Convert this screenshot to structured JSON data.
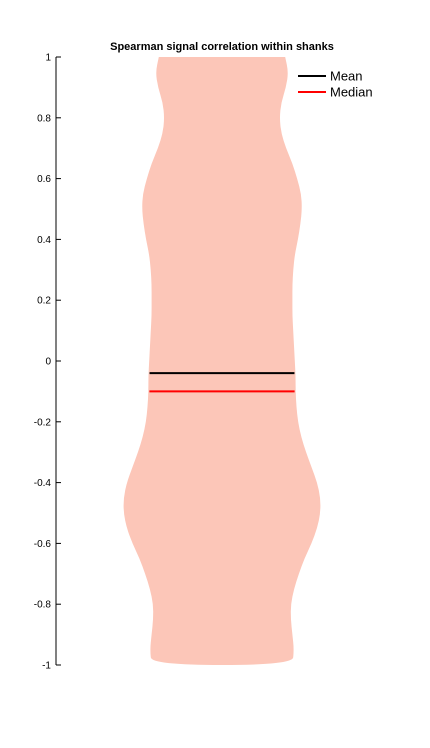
{
  "chart_data": {
    "type": "violin",
    "title": "Spearman signal correlation within shanks",
    "xlabel": "",
    "ylabel": "",
    "ylim": [
      -1,
      1
    ],
    "y_ticks": [
      1,
      0.8,
      0.6,
      0.4,
      0.2,
      0,
      -0.2,
      -0.4,
      -0.6,
      -0.8,
      -1
    ],
    "y_tick_labels": [
      "1",
      "0.8",
      "0.6",
      "0.4",
      "0.2",
      "0",
      "-0.2",
      "-0.4",
      "-0.6",
      "-0.8",
      "-1"
    ],
    "grid": false,
    "legend_position": "top-right",
    "violin_color": "#fcc6b8",
    "density_profile": {
      "y": [
        1.0,
        0.95,
        0.9,
        0.85,
        0.8,
        0.75,
        0.7,
        0.65,
        0.6,
        0.55,
        0.5,
        0.45,
        0.4,
        0.35,
        0.3,
        0.25,
        0.2,
        0.15,
        0.1,
        0.05,
        0.0,
        -0.05,
        -0.1,
        -0.15,
        -0.2,
        -0.25,
        -0.3,
        -0.35,
        -0.4,
        -0.45,
        -0.5,
        -0.55,
        -0.6,
        -0.65,
        -0.7,
        -0.75,
        -0.8,
        -0.85,
        -0.9,
        -0.95,
        -1.0
      ],
      "relative_width": [
        0.79,
        0.83,
        0.8,
        0.74,
        0.72,
        0.74,
        0.8,
        0.88,
        0.94,
        0.99,
        1.0,
        0.98,
        0.95,
        0.91,
        0.89,
        0.88,
        0.88,
        0.88,
        0.89,
        0.9,
        0.91,
        0.92,
        0.92,
        0.93,
        0.95,
        0.99,
        1.05,
        1.12,
        1.19,
        1.23,
        1.23,
        1.19,
        1.12,
        1.03,
        0.96,
        0.9,
        0.86,
        0.86,
        0.88,
        0.9,
        0.88
      ]
    },
    "series": [
      {
        "name": "Mean",
        "value": -0.04,
        "color": "#000000"
      },
      {
        "name": "Median",
        "value": -0.1,
        "color": "#ff0000"
      }
    ]
  }
}
